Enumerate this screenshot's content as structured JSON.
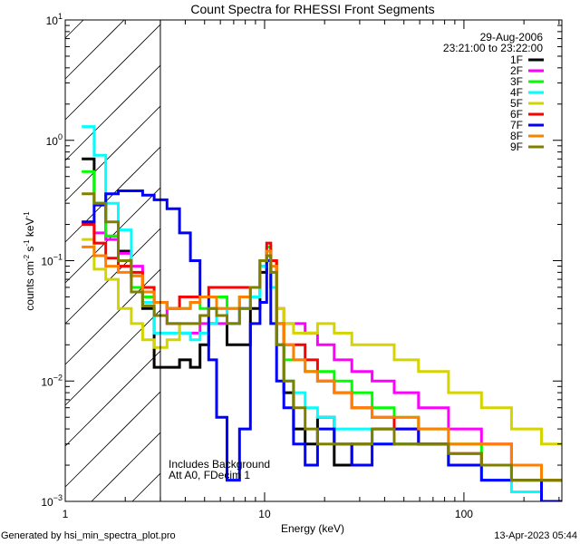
{
  "chart_data": {
    "type": "line",
    "title": "Count Spectra for RHESSI Front Segments",
    "xlabel": "Energy (keV)",
    "ylabel": "counts cm^-2 s^-1 keV^-1",
    "ylabel_parts": {
      "a": "counts cm",
      "b": "-2",
      "c": " s",
      "d": "-1",
      "e": " keV",
      "f": "-1"
    },
    "xscale": "log",
    "yscale": "log",
    "xlim": [
      1,
      310
    ],
    "ylim": [
      0.001,
      10
    ],
    "xticks": [
      {
        "v": 1,
        "label": "1"
      },
      {
        "v": 10,
        "label": "10"
      },
      {
        "v": 100,
        "label": "100"
      }
    ],
    "yticks": [
      {
        "v": 10,
        "base": "10",
        "exp": "1"
      },
      {
        "v": 1,
        "base": "10",
        "exp": "0"
      },
      {
        "v": 0.1,
        "base": "10",
        "exp": "−1"
      },
      {
        "v": 0.01,
        "base": "10",
        "exp": "−2"
      },
      {
        "v": 0.001,
        "base": "10",
        "exp": "−3"
      }
    ],
    "hatched_region_max_energy": 3,
    "date": "29-Aug-2006",
    "time_range": "23:21:00 to 23:22:00",
    "annotations": [
      "Includes Background",
      "Att A0, FDecim 1"
    ],
    "legend_position": "top-right",
    "energy": [
      1.3,
      1.5,
      1.7,
      2.0,
      2.3,
      2.6,
      3.0,
      3.5,
      4,
      4.5,
      5,
      5.5,
      6,
      7,
      8,
      9,
      10,
      10.5,
      11,
      12,
      13,
      15,
      17,
      20,
      25,
      30,
      40,
      50,
      70,
      100,
      150,
      200,
      300
    ],
    "series": [
      {
        "name": "1F",
        "color": "#000000",
        "values": [
          0.7,
          0.3,
          0.16,
          0.12,
          0.075,
          0.04,
          0.013,
          0.013,
          0.015,
          0.013,
          0.02,
          0.03,
          0.035,
          0.02,
          0.02,
          0.04,
          0.08,
          0.12,
          0.06,
          0.02,
          0.008,
          0.004,
          0.003,
          0.005,
          0.002,
          0.003,
          0.004,
          0.003,
          0.003,
          0.002,
          0.002,
          0.002,
          0.0015
        ]
      },
      {
        "name": "2F",
        "color": "#ff00ff",
        "values": [
          0.21,
          0.17,
          0.15,
          0.115,
          0.09,
          0.05,
          0.045,
          0.03,
          0.025,
          0.025,
          0.03,
          0.03,
          0.03,
          0.03,
          0.04,
          0.05,
          0.09,
          0.12,
          0.1,
          0.04,
          0.03,
          0.03,
          0.025,
          0.02,
          0.015,
          0.012,
          0.01,
          0.008,
          0.006,
          0.004,
          0.003,
          0.002,
          0.0015
        ]
      },
      {
        "name": "3F",
        "color": "#00ff00",
        "values": [
          0.55,
          0.3,
          0.16,
          0.09,
          0.06,
          0.05,
          0.045,
          0.04,
          0.04,
          0.045,
          0.04,
          0.04,
          0.05,
          0.04,
          0.05,
          0.05,
          0.1,
          0.13,
          0.1,
          0.03,
          0.015,
          0.015,
          0.012,
          0.012,
          0.01,
          0.008,
          0.006,
          0.005,
          0.004,
          0.003,
          0.002,
          0.0015,
          0.001
        ]
      },
      {
        "name": "4F",
        "color": "#00ffff",
        "values": [
          1.3,
          0.75,
          0.3,
          0.18,
          0.075,
          0.045,
          0.025,
          0.025,
          0.025,
          0.022,
          0.025,
          0.03,
          0.04,
          0.03,
          0.04,
          0.05,
          0.09,
          0.1,
          0.06,
          0.02,
          0.01,
          0.008,
          0.006,
          0.005,
          0.004,
          0.004,
          0.003,
          0.003,
          0.003,
          0.002,
          0.0015,
          0.0012,
          0.001
        ]
      },
      {
        "name": "5F",
        "color": "#d4d400",
        "values": [
          0.15,
          0.085,
          0.07,
          0.04,
          0.03,
          0.022,
          0.019,
          0.022,
          0.03,
          0.03,
          0.035,
          0.04,
          0.04,
          0.04,
          0.05,
          0.06,
          0.1,
          0.1,
          0.08,
          0.04,
          0.03,
          0.025,
          0.025,
          0.03,
          0.025,
          0.02,
          0.02,
          0.015,
          0.012,
          0.008,
          0.006,
          0.004,
          0.003
        ]
      },
      {
        "name": "6F",
        "color": "#ff0000",
        "values": [
          0.2,
          0.14,
          0.105,
          0.09,
          0.08,
          0.06,
          0.045,
          0.04,
          0.05,
          0.05,
          0.05,
          0.06,
          0.06,
          0.06,
          0.06,
          0.06,
          0.1,
          0.14,
          0.1,
          0.03,
          0.02,
          0.02,
          0.015,
          0.01,
          0.008,
          0.006,
          0.005,
          0.004,
          0.003,
          0.0025,
          0.002,
          0.002,
          0.0015
        ]
      },
      {
        "name": "7F",
        "color": "#0000ff",
        "values": [
          0.21,
          0.29,
          0.36,
          0.38,
          0.38,
          0.35,
          0.32,
          0.27,
          0.17,
          0.1,
          0.05,
          0.015,
          0.005,
          0.0015,
          0.004,
          0.03,
          0.045,
          0.1,
          0.03,
          0.01,
          0.006,
          0.003,
          0.002,
          0.004,
          0.003,
          0.002,
          0.003,
          0.004,
          0.003,
          0.002,
          0.0015,
          0.0015,
          0.001
        ]
      },
      {
        "name": "8F",
        "color": "#ff8000",
        "values": [
          0.13,
          0.11,
          0.09,
          0.08,
          0.075,
          0.055,
          0.045,
          0.04,
          0.04,
          0.045,
          0.05,
          0.05,
          0.04,
          0.04,
          0.05,
          0.06,
          0.1,
          0.12,
          0.09,
          0.03,
          0.02,
          0.015,
          0.012,
          0.01,
          0.008,
          0.006,
          0.005,
          0.005,
          0.004,
          0.003,
          0.003,
          0.002,
          0.0015
        ]
      },
      {
        "name": "9F",
        "color": "#808000",
        "values": [
          0.36,
          0.3,
          0.21,
          0.1,
          0.055,
          0.042,
          0.035,
          0.03,
          0.03,
          0.03,
          0.035,
          0.04,
          0.035,
          0.03,
          0.04,
          0.06,
          0.1,
          0.11,
          0.08,
          0.02,
          0.01,
          0.006,
          0.004,
          0.003,
          0.003,
          0.003,
          0.004,
          0.003,
          0.003,
          0.0025,
          0.002,
          0.0015,
          0.0015
        ]
      }
    ]
  },
  "footer": {
    "generated_by": "Generated by hsi_min_spectra_plot.pro",
    "timestamp": "13-Apr-2023 05:44"
  }
}
